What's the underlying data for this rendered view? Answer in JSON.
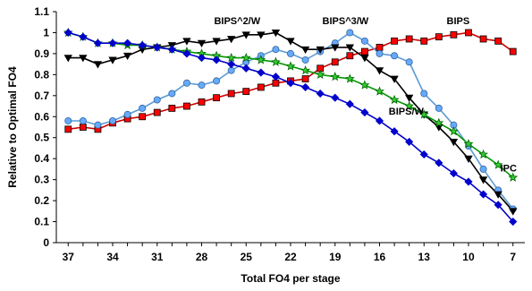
{
  "chart_data": {
    "type": "line",
    "xlabel": "Total FO4 per stage",
    "ylabel": "Relative to Optimal FO4",
    "x": [
      37,
      36,
      35,
      34,
      33,
      32,
      31,
      30,
      29,
      28,
      27,
      26,
      25,
      24,
      23,
      22,
      21,
      20,
      19,
      18,
      17,
      16,
      15,
      14,
      13,
      12,
      11,
      10,
      9,
      8,
      7
    ],
    "xticks": [
      37,
      34,
      31,
      28,
      25,
      22,
      19,
      16,
      13,
      10,
      7
    ],
    "xlim": [
      37.8,
      6.2
    ],
    "ylim": [
      0,
      1.1
    ],
    "yticks": [
      0,
      0.1,
      0.2,
      0.3,
      0.4,
      0.5,
      0.6,
      0.7,
      0.8,
      0.9,
      1,
      1.1
    ],
    "ytick_labels": [
      "0",
      "0.1",
      "0.2",
      "0.3",
      "0.4",
      "0.5",
      "0.6",
      "0.7",
      "0.8",
      "0.9",
      "1",
      "1.1"
    ],
    "grid": "none",
    "legend": "none",
    "series": [
      {
        "key": "bips",
        "color": "#ff0000",
        "stroke": "#000000",
        "marker": "square",
        "values": [
          0.54,
          0.55,
          0.54,
          0.57,
          0.59,
          0.6,
          0.62,
          0.64,
          0.65,
          0.67,
          0.69,
          0.71,
          0.72,
          0.74,
          0.76,
          0.77,
          0.78,
          0.83,
          0.86,
          0.89,
          0.91,
          0.93,
          0.96,
          0.97,
          0.96,
          0.98,
          0.99,
          1.0,
          0.97,
          0.96,
          0.91
        ]
      },
      {
        "key": "bips3w",
        "color": "#66aaff",
        "stroke": "#336699",
        "marker": "circle",
        "values": [
          0.58,
          0.58,
          0.56,
          0.58,
          0.61,
          0.64,
          0.68,
          0.71,
          0.76,
          0.75,
          0.77,
          0.82,
          0.86,
          0.89,
          0.92,
          0.9,
          0.87,
          0.91,
          0.95,
          1.0,
          0.96,
          0.9,
          0.89,
          0.86,
          0.71,
          0.64,
          0.56,
          0.46,
          0.35,
          0.25,
          0.16
        ]
      },
      {
        "key": "bips2w",
        "color": "#000000",
        "stroke": "#000000",
        "marker": "triangle-down",
        "values": [
          0.88,
          0.88,
          0.85,
          0.87,
          0.89,
          0.92,
          0.93,
          0.94,
          0.96,
          0.95,
          0.96,
          0.97,
          0.99,
          0.99,
          1.0,
          0.96,
          0.92,
          0.92,
          0.93,
          0.93,
          0.88,
          0.82,
          0.78,
          0.69,
          0.61,
          0.55,
          0.48,
          0.4,
          0.3,
          0.23,
          0.15
        ]
      },
      {
        "key": "ipc",
        "color": "#33cc33",
        "stroke": "#006600",
        "marker": "star",
        "values": [
          1.0,
          0.98,
          0.95,
          0.95,
          0.94,
          0.94,
          0.93,
          0.92,
          0.91,
          0.9,
          0.89,
          0.88,
          0.88,
          0.87,
          0.86,
          0.84,
          0.82,
          0.8,
          0.79,
          0.78,
          0.75,
          0.72,
          0.68,
          0.65,
          0.61,
          0.57,
          0.53,
          0.47,
          0.42,
          0.37,
          0.31
        ]
      },
      {
        "key": "bipsw",
        "color": "#0000cc",
        "stroke": "#0000cc",
        "marker": "diamond",
        "values": [
          1.0,
          0.98,
          0.95,
          0.95,
          0.95,
          0.94,
          0.93,
          0.92,
          0.9,
          0.88,
          0.87,
          0.85,
          0.83,
          0.81,
          0.79,
          0.76,
          0.74,
          0.71,
          0.69,
          0.66,
          0.62,
          0.58,
          0.53,
          0.48,
          0.42,
          0.38,
          0.33,
          0.29,
          0.23,
          0.18,
          0.1
        ]
      }
    ],
    "annotations": [
      {
        "text": "BIPS",
        "x": 10.7,
        "y": 1.04
      },
      {
        "text": "BIPS^3/W",
        "x": 18.3,
        "y": 1.04
      },
      {
        "text": "BIPS^2/W",
        "x": 25.6,
        "y": 1.04
      },
      {
        "text": "BIPS/W",
        "x": 14.2,
        "y": 0.61
      },
      {
        "text": "IPC",
        "x": 7.3,
        "y": 0.34
      }
    ]
  }
}
